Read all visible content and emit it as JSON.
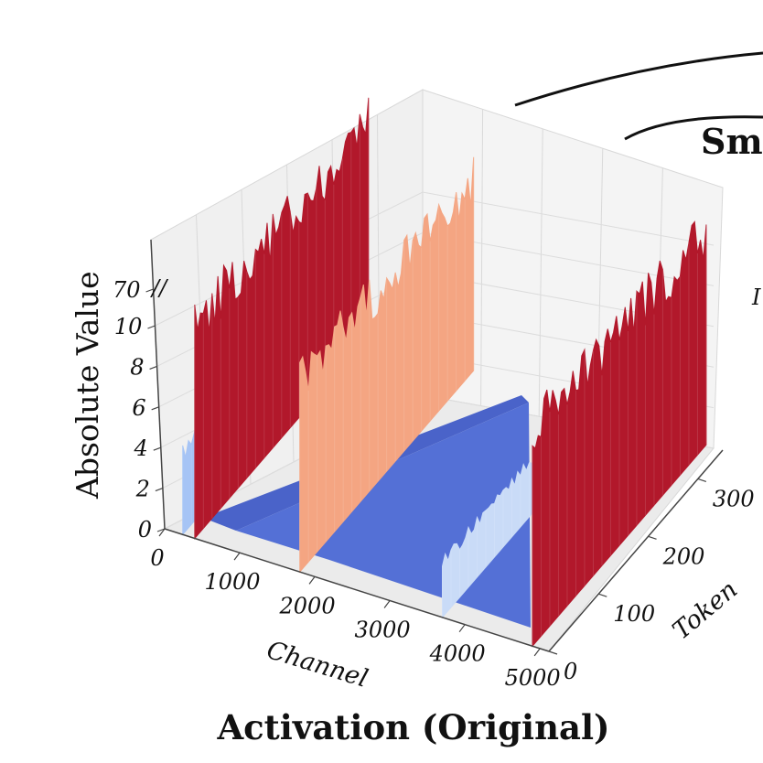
{
  "chart_data": {
    "type": "surface3d",
    "title": "Activation (Original)",
    "xlabel": "Channel",
    "ylabel": "Token",
    "zlabel": "Absolute Value",
    "x_ticks": [
      "0",
      "1000",
      "2000",
      "3000",
      "4000",
      "5000"
    ],
    "y_ticks": [
      "0",
      "100",
      "200",
      "300"
    ],
    "z_ticks": [
      "0",
      "2",
      "4",
      "6",
      "8",
      "10",
      "70"
    ],
    "xlim": [
      0,
      5120
    ],
    "ylim": [
      0,
      350
    ],
    "zlim": [
      0,
      70
    ],
    "z_axis_break": "between 10 and 70",
    "colormap": "coolwarm",
    "baseline_value": 0.3,
    "outlier_channels": [
      {
        "channel": 400,
        "max_value": 70,
        "color": "#b2182b"
      },
      {
        "channel": 1800,
        "max_value": 10.5,
        "color": "#f4a582"
      },
      {
        "channel": 4900,
        "max_value": 70,
        "color": "#b2182b"
      },
      {
        "channel": 240,
        "max_value": 4.5,
        "color": "#a6c4f5"
      },
      {
        "channel": 3700,
        "max_value": 3.0,
        "color": "#c9dbf7"
      }
    ],
    "grid": true,
    "clipped_text": "Smo",
    "clipped_axis_text": "I"
  }
}
